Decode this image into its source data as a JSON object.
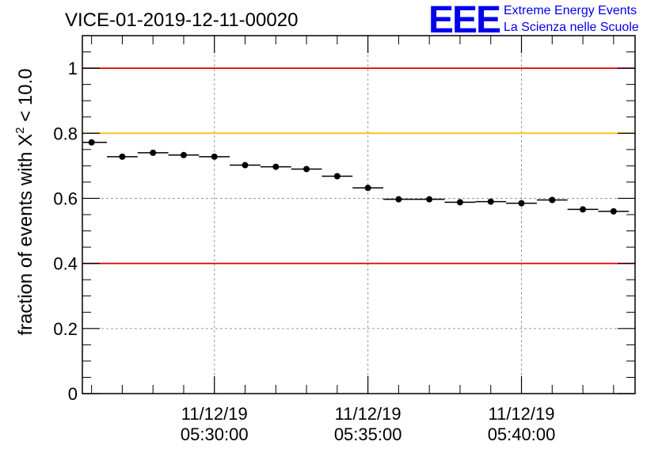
{
  "header": {
    "title": "VICE-01-2019-12-11-00020",
    "logo_letters": "EEE",
    "logo_line1": "Extreme Energy Events",
    "logo_line2": "La Scienza nelle Scuole"
  },
  "colors": {
    "red_line": "#e00000",
    "yellow_line": "#ffbb00",
    "marker": "#000000",
    "grid": "#999999",
    "logo": "#0000ee"
  },
  "chart_data": {
    "type": "scatter",
    "title": "VICE-01-2019-12-11-00020",
    "ylabel_prefix": "fraction of events with ",
    "ylabel_symbol": "X",
    "ylabel_sup": "2",
    "ylabel_suffix": " < 10.0",
    "xlabel": "",
    "ylim": [
      0,
      1.1
    ],
    "xlim_minutes": [
      -9.3,
      8.7
    ],
    "y_ticks": [
      0,
      0.2,
      0.4,
      0.6,
      0.8,
      1
    ],
    "y_tick_labels": [
      "0",
      "0.2",
      "0.4",
      "0.6",
      "0.8",
      "1"
    ],
    "x_ticks": [
      {
        "t": -5,
        "date": "11/12/19",
        "time": "05:30:00"
      },
      {
        "t": 0,
        "date": "11/12/19",
        "time": "05:35:00"
      },
      {
        "t": 5,
        "date": "11/12/19",
        "time": "05:40:00"
      }
    ],
    "bin_width_minutes": 1,
    "x": [
      -9.0,
      -8.0,
      -7.0,
      -6.0,
      -5.0,
      -4.0,
      -3.0,
      -2.0,
      -1.0,
      0.0,
      1.0,
      2.0,
      3.0,
      4.0,
      5.0,
      6.0,
      7.0,
      8.0
    ],
    "values": [
      0.772,
      0.728,
      0.74,
      0.733,
      0.728,
      0.702,
      0.697,
      0.69,
      0.668,
      0.632,
      0.597,
      0.597,
      0.588,
      0.59,
      0.585,
      0.595,
      0.566,
      0.56
    ],
    "reference_lines": [
      {
        "y": 1.0,
        "color": "#e00000"
      },
      {
        "y": 0.8,
        "color": "#ffbb00"
      },
      {
        "y": 0.4,
        "color": "#e00000"
      }
    ]
  }
}
